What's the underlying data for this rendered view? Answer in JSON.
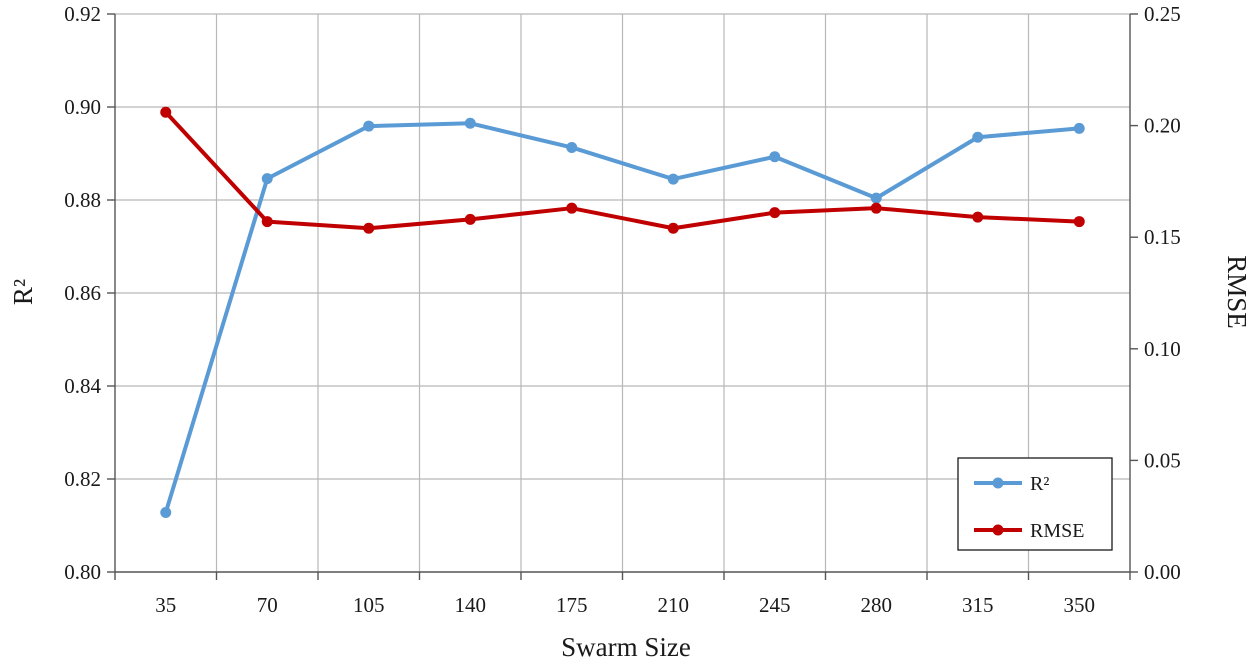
{
  "chart_data": {
    "type": "line",
    "categories": [
      "35",
      "70",
      "105",
      "140",
      "175",
      "210",
      "245",
      "280",
      "315",
      "350"
    ],
    "series": [
      {
        "name": "R²",
        "axis": "left",
        "color": "#5b9bd5",
        "values": [
          0.8128,
          0.8846,
          0.8959,
          0.8965,
          0.8913,
          0.8845,
          0.8893,
          0.8804,
          0.8935,
          0.8954
        ]
      },
      {
        "name": "RMSE",
        "axis": "right",
        "color": "#c00000",
        "values": [
          0.206,
          0.157,
          0.154,
          0.158,
          0.163,
          0.154,
          0.161,
          0.163,
          0.159,
          0.157
        ]
      }
    ],
    "xlabel": "Swarm Size",
    "ylabel_left": "R²",
    "ylabel_right": "RMSE",
    "ylim_left": [
      0.8,
      0.92
    ],
    "ylim_right": [
      0.0,
      0.25
    ],
    "yticks_left": [
      "0.80",
      "0.82",
      "0.84",
      "0.86",
      "0.88",
      "0.90",
      "0.92"
    ],
    "yticks_right": [
      "0.00",
      "0.05",
      "0.10",
      "0.15",
      "0.20",
      "0.25"
    ],
    "grid": true,
    "legend_position": "bottom-right"
  }
}
